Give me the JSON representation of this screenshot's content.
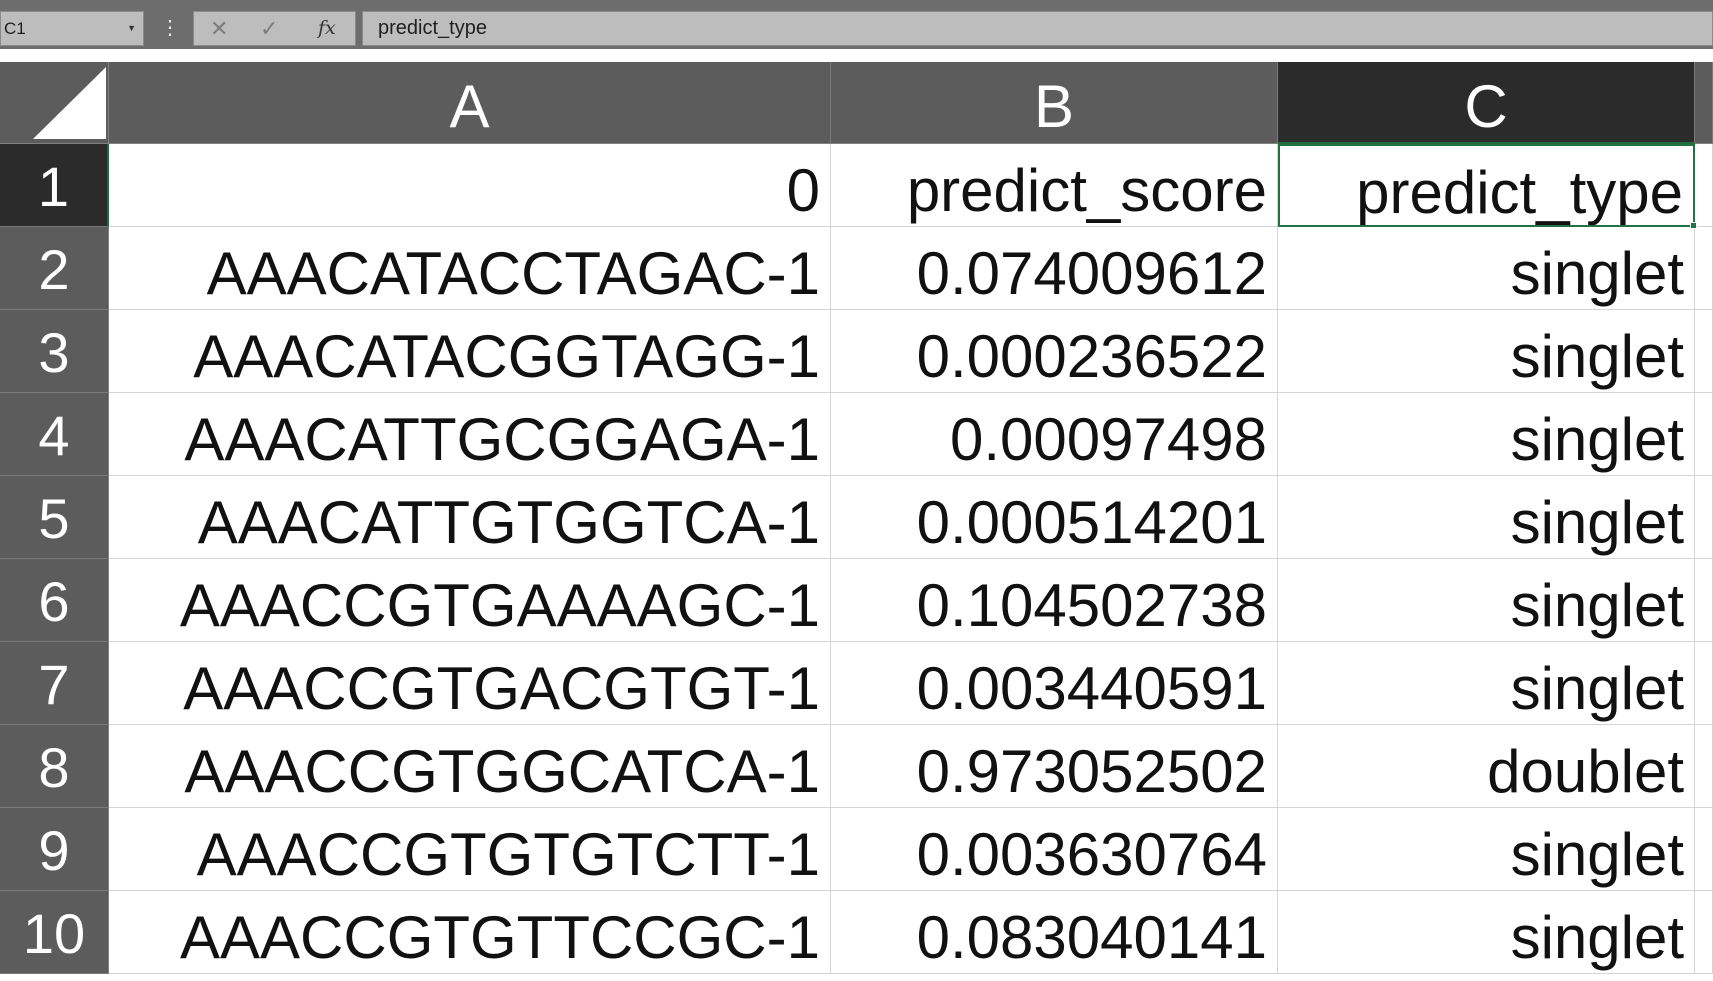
{
  "formula_bar": {
    "name_box": "C1",
    "kebab_icon": "⋮",
    "cancel_icon": "✕",
    "enter_icon": "✓",
    "fx_label": "fx",
    "content": "predict_type"
  },
  "columns": [
    "A",
    "B",
    "C"
  ],
  "rows": [
    {
      "num": "1",
      "A": "0",
      "B": "predict_score",
      "C": "predict_type"
    },
    {
      "num": "2",
      "A": "AAACATACCTAGAC-1",
      "B": "0.074009612",
      "C": "singlet"
    },
    {
      "num": "3",
      "A": "AAACATACGGTAGG-1",
      "B": "0.000236522",
      "C": "singlet"
    },
    {
      "num": "4",
      "A": "AAACATTGCGGAGA-1",
      "B": "0.00097498",
      "C": "singlet"
    },
    {
      "num": "5",
      "A": "AAACATTGTGGTCA-1",
      "B": "0.000514201",
      "C": "singlet"
    },
    {
      "num": "6",
      "A": "AAACCGTGAAAAGC-1",
      "B": "0.104502738",
      "C": "singlet"
    },
    {
      "num": "7",
      "A": "AAACCGTGACGTGT-1",
      "B": "0.003440591",
      "C": "singlet"
    },
    {
      "num": "8",
      "A": "AAACCGTGGCATCA-1",
      "B": "0.973052502",
      "C": "doublet"
    },
    {
      "num": "9",
      "A": "AAACCGTGTGTCTT-1",
      "B": "0.003630764",
      "C": "singlet"
    },
    {
      "num": "10",
      "A": "AAACCGTGTTCCGC-1",
      "B": "0.083040141",
      "C": "singlet"
    }
  ]
}
